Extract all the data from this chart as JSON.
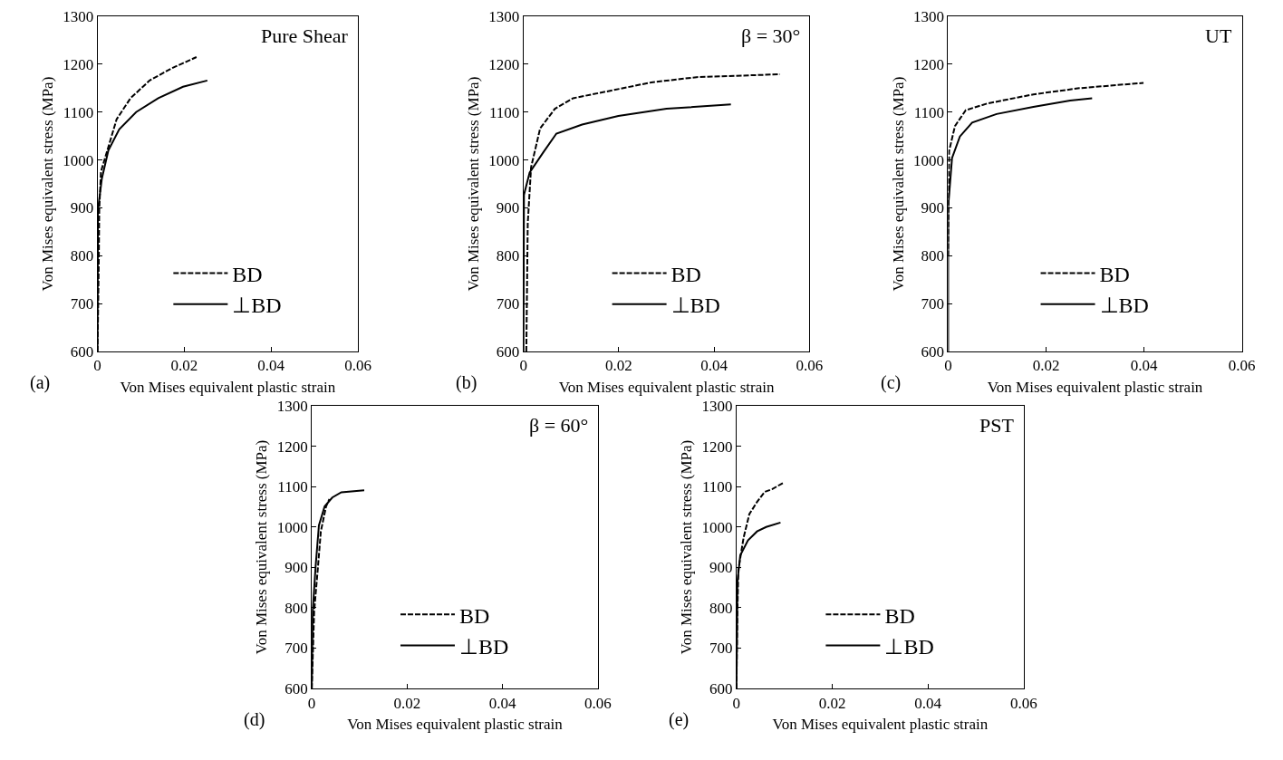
{
  "chart_data": [
    {
      "type": "line",
      "title": "Pure Shear",
      "annotations": [
        "(a)"
      ],
      "xlabel": "Von Mises equivalent plastic strain",
      "ylabel": "Von Mises equivalent stress (MPa)",
      "xlim": [
        0,
        0.06
      ],
      "xticks": [
        0,
        0.02,
        0.04,
        0.06
      ],
      "ylim": [
        600,
        1300
      ],
      "yticks": [
        600,
        700,
        800,
        900,
        1000,
        1100,
        1200,
        1300
      ],
      "legend": "bottom",
      "marker": "none",
      "series": [
        {
          "name": "BD",
          "color": "#000000",
          "line_style": "dashed",
          "x": [
            0,
            0.0003,
            0.0004,
            0.0008,
            0.0025,
            0.0044,
            0.0076,
            0.012,
            0.017,
            0.0228
          ],
          "values": [
            600,
            793,
            896,
            976,
            1027,
            1085,
            1129,
            1166,
            1191,
            1215
          ]
        },
        {
          "name": "⊥BD",
          "color": "#000000",
          "line_style": "solid",
          "x": [
            0,
            0.0001,
            0.001,
            0.0025,
            0.005,
            0.0089,
            0.014,
            0.0197,
            0.0253
          ],
          "values": [
            600,
            896,
            961,
            1020,
            1064,
            1100,
            1129,
            1153,
            1166
          ]
        }
      ]
    },
    {
      "type": "line",
      "title": "β = 30°",
      "annotations": [
        "(b)"
      ],
      "xlabel": "Von Mises equivalent plastic strain",
      "ylabel": "Von Mises equivalent stress (MPa)",
      "xlim": [
        0,
        0.06
      ],
      "xticks": [
        0,
        0.02,
        0.04,
        0.06
      ],
      "ylim": [
        600,
        1300
      ],
      "yticks": [
        600,
        700,
        800,
        900,
        1000,
        1100,
        1200,
        1300
      ],
      "legend": "bottom",
      "marker": "none",
      "series": [
        {
          "name": "BD",
          "color": "#000000",
          "line_style": "dashed",
          "x": [
            0.0006,
            0.0009,
            0.0016,
            0.0035,
            0.0066,
            0.0104,
            0.0174,
            0.0268,
            0.0363,
            0.0538
          ],
          "values": [
            600,
            868,
            985,
            1066,
            1107,
            1129,
            1143,
            1162,
            1173,
            1179
          ]
        },
        {
          "name": "⊥BD",
          "color": "#000000",
          "line_style": "solid",
          "x": [
            0,
            0.0001,
            0.0013,
            0.0041,
            0.0069,
            0.0123,
            0.0199,
            0.03,
            0.0435
          ],
          "values": [
            600,
            927,
            974,
            1015,
            1055,
            1074,
            1092,
            1107,
            1116
          ]
        }
      ]
    },
    {
      "type": "line",
      "title": "UT",
      "annotations": [
        "(c)"
      ],
      "xlabel": "Von Mises equivalent plastic strain",
      "ylabel": "Von Mises equivalent stress (MPa)",
      "xlim": [
        0,
        0.06
      ],
      "xticks": [
        0,
        0.02,
        0.04,
        0.06
      ],
      "ylim": [
        600,
        1300
      ],
      "yticks": [
        600,
        700,
        800,
        900,
        1000,
        1100,
        1200,
        1300
      ],
      "legend": "bottom",
      "marker": "none",
      "series": [
        {
          "name": "BD",
          "color": "#000000",
          "line_style": "dashed",
          "x": [
            0,
            0.0002,
            0.0014,
            0.0036,
            0.008,
            0.0174,
            0.0268,
            0.0399
          ],
          "values": [
            799,
            1019,
            1071,
            1104,
            1118,
            1137,
            1150,
            1161
          ]
        },
        {
          "name": "⊥BD",
          "color": "#000000",
          "line_style": "solid",
          "x": [
            0,
            0,
            0.0008,
            0.0024,
            0.0049,
            0.0099,
            0.0174,
            0.0249,
            0.0294
          ],
          "values": [
            600,
            901,
            1004,
            1049,
            1078,
            1096,
            1111,
            1124,
            1129
          ]
        }
      ]
    },
    {
      "type": "line",
      "title": "β = 60°",
      "annotations": [
        "(d)"
      ],
      "xlabel": "Von Mises equivalent plastic strain",
      "ylabel": "Von Mises equivalent stress (MPa)",
      "xlim": [
        0,
        0.06
      ],
      "xticks": [
        0,
        0.02,
        0.04,
        0.06
      ],
      "ylim": [
        600,
        1300
      ],
      "yticks": [
        600,
        700,
        800,
        900,
        1000,
        1100,
        1200,
        1300
      ],
      "legend": "bottom",
      "marker": "none",
      "series": [
        {
          "name": "BD",
          "color": "#000000",
          "line_style": "dashed",
          "x": [
            0,
            0.0005,
            0.0013,
            0.0019,
            0.003,
            0.0037
          ],
          "values": [
            600,
            791,
            901,
            989,
            1051,
            1069
          ]
        },
        {
          "name": "⊥BD",
          "color": "#000000",
          "line_style": "solid",
          "x": [
            0,
            0.0002,
            0.0008,
            0.0015,
            0.0027,
            0.0043,
            0.0062,
            0.011
          ],
          "values": [
            600,
            791,
            901,
            1004,
            1051,
            1073,
            1086,
            1091
          ]
        }
      ]
    },
    {
      "type": "line",
      "title": "PST",
      "annotations": [
        "(e)"
      ],
      "xlabel": "Von Mises equivalent plastic strain",
      "ylabel": "Von Mises equivalent stress (MPa)",
      "xlim": [
        0,
        0.06
      ],
      "xticks": [
        0,
        0.02,
        0.04,
        0.06
      ],
      "ylim": [
        600,
        1300
      ],
      "yticks": [
        600,
        700,
        800,
        900,
        1000,
        1100,
        1200,
        1300
      ],
      "legend": "bottom",
      "marker": "none",
      "series": [
        {
          "name": "BD",
          "color": "#000000",
          "line_style": "dashed",
          "x": [
            0,
            0.0002,
            0.0004,
            0.0015,
            0.0027,
            0.0043,
            0.0059,
            0.0075,
            0.01
          ],
          "values": [
            600,
            791,
            894,
            974,
            1032,
            1062,
            1087,
            1094,
            1111
          ]
        },
        {
          "name": "⊥BD",
          "color": "#000000",
          "line_style": "solid",
          "x": [
            0,
            0.0002,
            0.0008,
            0.0024,
            0.0043,
            0.0062,
            0.0092
          ],
          "values": [
            600,
            864,
            930,
            967,
            989,
            1000,
            1011
          ]
        }
      ]
    }
  ]
}
